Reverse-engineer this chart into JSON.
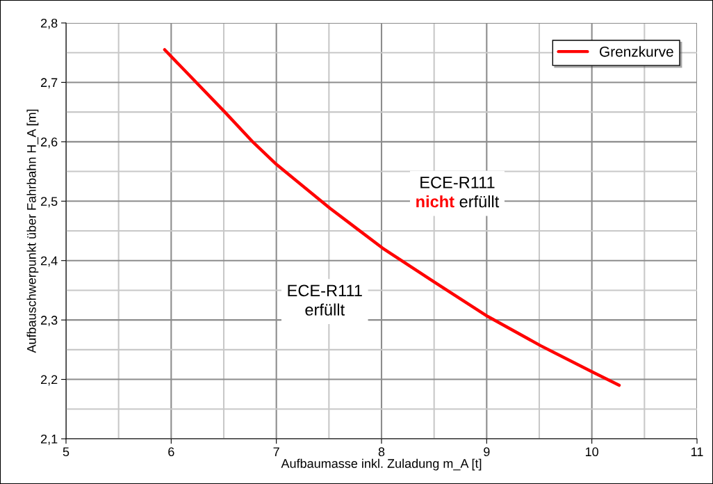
{
  "chart_data": {
    "type": "line",
    "xlabel": "Aufbaumasse inkl. Zuladung m_A [t]",
    "ylabel": "Aufbauschwerpunkt über Fahrbahn H_A [m]",
    "series": [
      {
        "name": "Grenzkurve",
        "color": "#ff0000",
        "x": [
          5.938,
          6.51,
          6.78,
          7.0,
          7.51,
          8.01,
          8.51,
          9.01,
          9.51,
          10.01,
          10.26
        ],
        "values": [
          2.755,
          2.65,
          2.599,
          2.562,
          2.488,
          2.421,
          2.363,
          2.306,
          2.257,
          2.212,
          2.19
        ]
      }
    ],
    "xlim": [
      5,
      11
    ],
    "xticks": [
      5,
      {
        "value": 5.5,
        "label": null
      },
      6,
      {
        "value": 6.5,
        "label": null
      },
      7,
      {
        "value": 7.5,
        "label": null
      },
      8,
      {
        "value": 8.5,
        "label": null
      },
      9,
      {
        "value": 9.5,
        "label": null
      },
      10,
      {
        "value": 10.5,
        "label": null
      },
      11
    ],
    "ylim": [
      2.1,
      2.8
    ],
    "yticks": [
      {
        "value": 2.1,
        "label": "2,1"
      },
      {
        "value": 2.15,
        "label": null
      },
      {
        "value": 2.2,
        "label": "2,2"
      },
      {
        "value": 2.25,
        "label": null
      },
      {
        "value": 2.3,
        "label": "2,3"
      },
      {
        "value": 2.35,
        "label": null
      },
      {
        "value": 2.4,
        "label": "2,4"
      },
      {
        "value": 2.45,
        "label": null
      },
      {
        "value": 2.5,
        "label": "2,5"
      },
      {
        "value": 2.55,
        "label": null
      },
      {
        "value": 2.6,
        "label": "2,6"
      },
      {
        "value": 2.65,
        "label": null
      },
      {
        "value": 2.7,
        "label": "2,7"
      },
      {
        "value": 2.75,
        "label": null
      },
      {
        "value": 2.8,
        "label": "2,8"
      }
    ],
    "annotations": [
      "ECE-R111\nnicht erfüllt",
      "ECE-R111\nerfüllt"
    ],
    "grid": true,
    "legend": "top right",
    "line_style": "solid",
    "marker": "none"
  }
}
